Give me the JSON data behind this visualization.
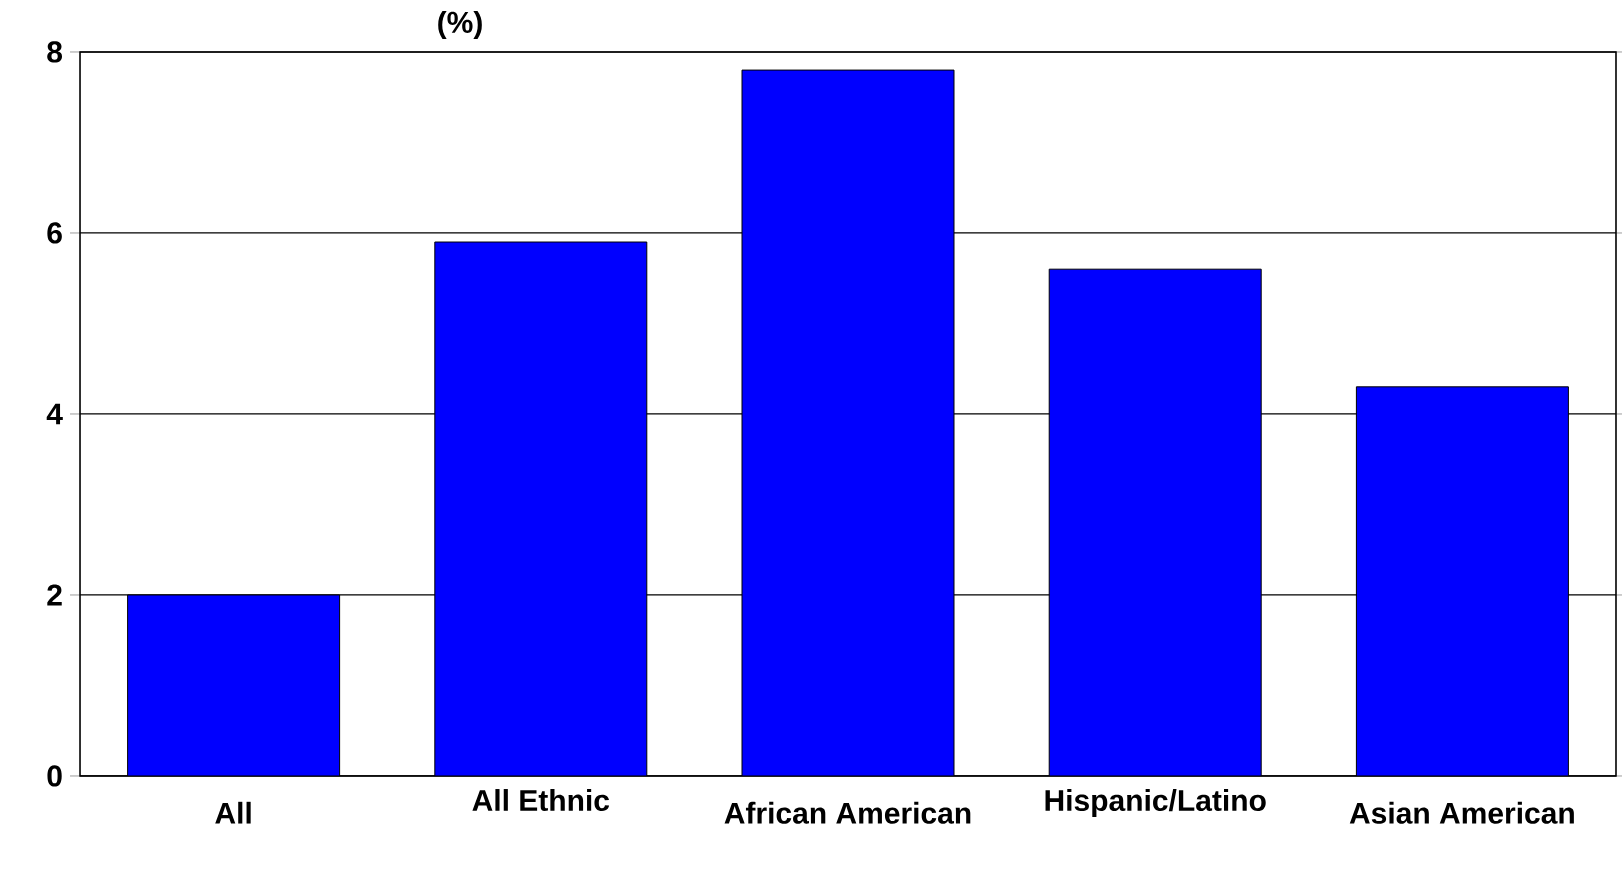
{
  "chart_data": {
    "type": "bar",
    "title": "(%)",
    "categories": [
      "All",
      "All Ethnic",
      "African American",
      "Hispanic/Latino",
      "Asian American"
    ],
    "values": [
      2.0,
      5.9,
      7.8,
      5.6,
      4.3
    ],
    "color": "#0000ff",
    "ylim": [
      0,
      8
    ],
    "yticks": [
      0,
      2,
      4,
      6,
      8
    ],
    "grid": "y"
  }
}
